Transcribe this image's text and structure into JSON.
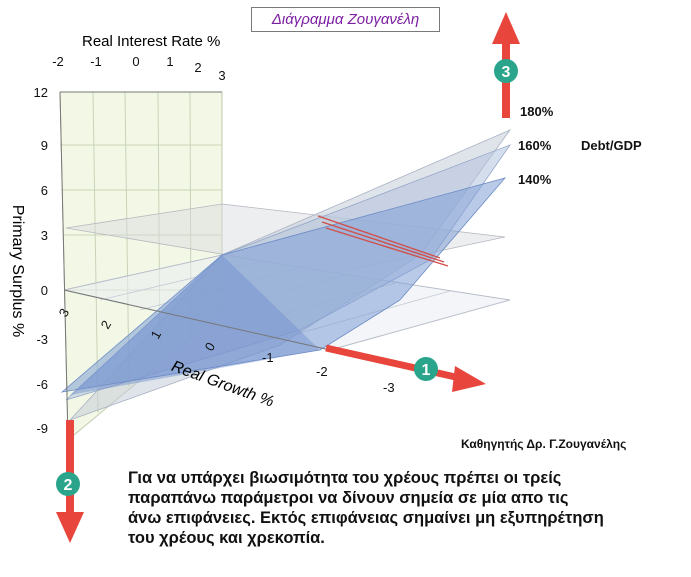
{
  "title": "Διάγραμμα Ζουγανέλη",
  "author": "Καθηγητής Δρ. Γ.Ζουγανέλης",
  "caption_lines": [
    "Για να υπάρχει βιωσιμότητα του χρέους πρέπει οι τρείς",
    "παραπάνω παράμετροι να δίνουν σημεία σε μία απο τις",
    "άνω επιφάνειες.  Εκτός επιφάνειας σημαίνει μη εξυπηρέτηση",
    "του χρέους και χρεκοπία."
  ],
  "colors": {
    "arrow": "#e8453c",
    "marker": "#2aa58b",
    "surface": "#7f9ed6",
    "title_text": "#7b1fa2"
  },
  "chart_data": {
    "type": "surface3d",
    "x_axis": {
      "label": "Real Growth %",
      "ticks": [
        "3",
        "2",
        "1",
        "0",
        "-1",
        "-2",
        "-3"
      ]
    },
    "y_axis": {
      "label": "Primary Surplus %",
      "ticks": [
        "12",
        "9",
        "6",
        "3",
        "0",
        "-3",
        "-6",
        "-9"
      ]
    },
    "z_axis": {
      "label": "Real Interest Rate %",
      "ticks": [
        "-2",
        "-1",
        "0",
        "1",
        "2",
        "3"
      ]
    },
    "series": [
      {
        "name": "180%"
      },
      {
        "name": "160%"
      },
      {
        "name": "140%"
      }
    ],
    "series_title": "Debt/GDP",
    "markers": [
      {
        "label": "1",
        "direction": "right"
      },
      {
        "label": "2",
        "direction": "down"
      },
      {
        "label": "3",
        "direction": "up"
      }
    ]
  }
}
